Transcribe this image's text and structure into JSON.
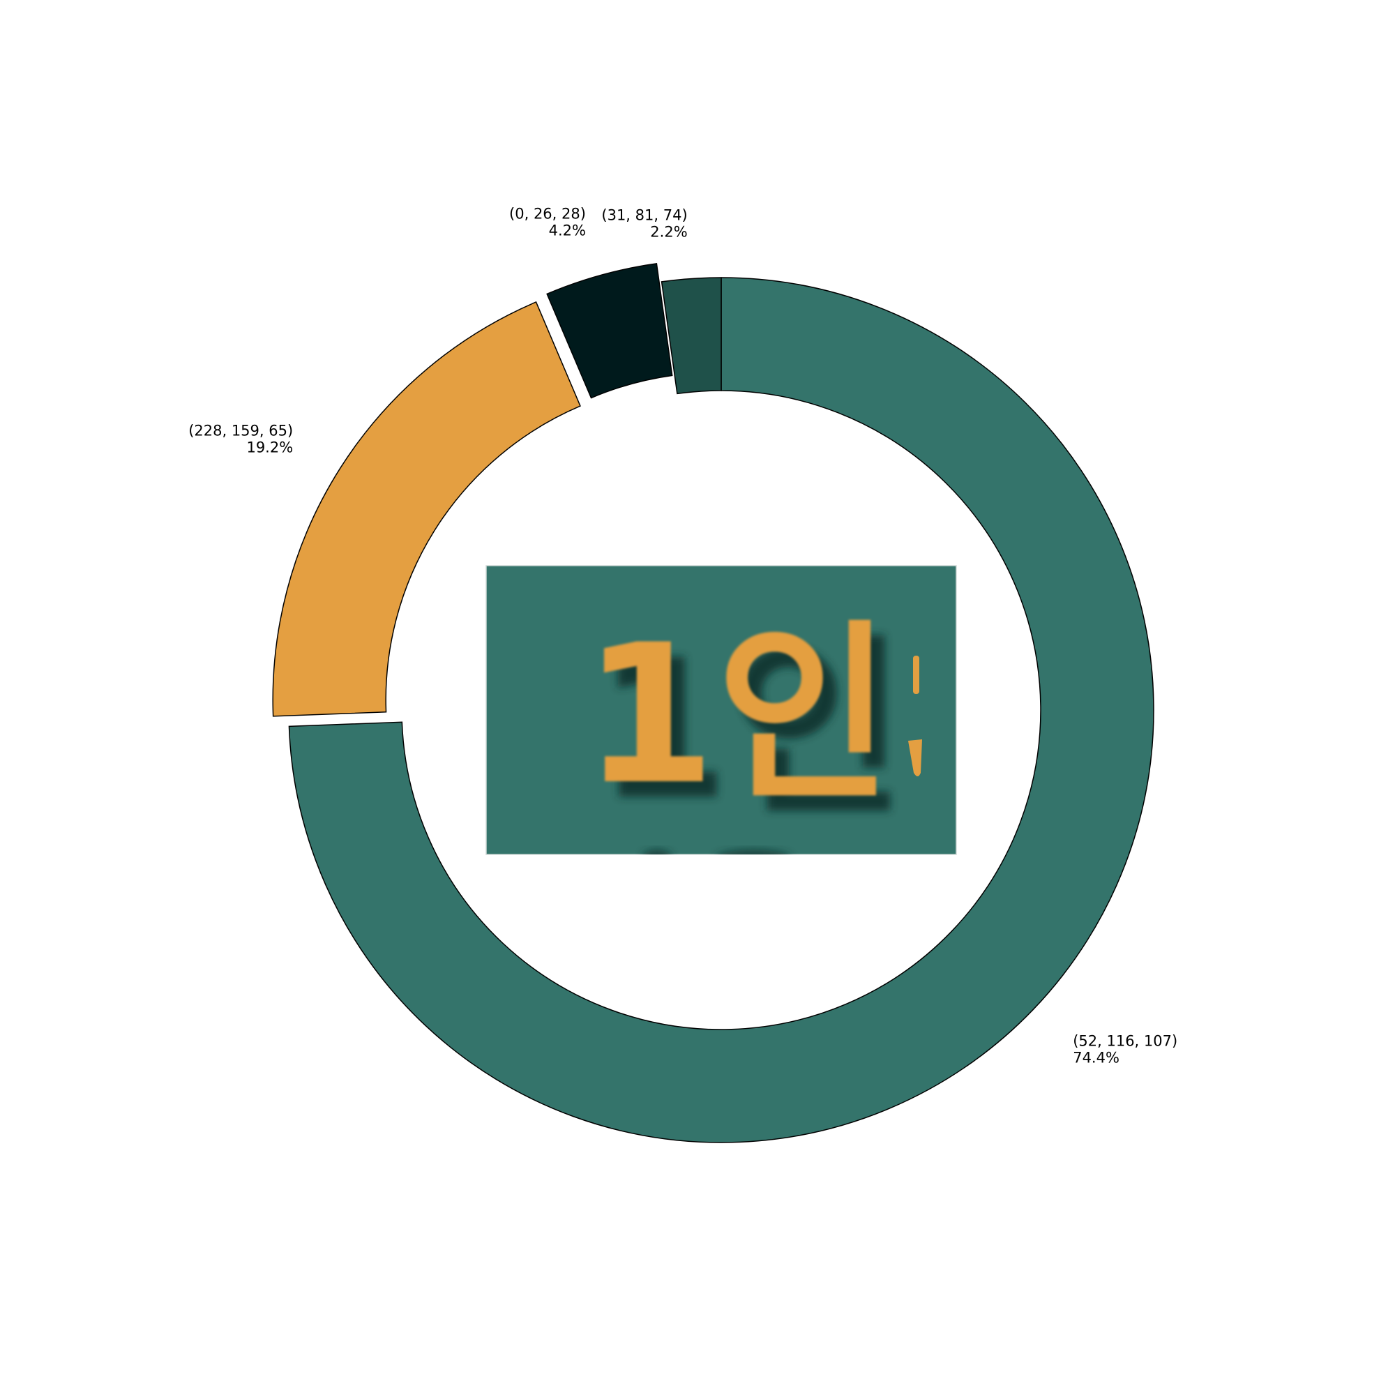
{
  "chart_data": {
    "type": "pie",
    "variant": "donut",
    "title": "",
    "start": "top, clockwise",
    "slices": [
      {
        "label": "(52, 116, 107)",
        "percent": 74.4,
        "percent_label": "74.4%",
        "color": "#34746b",
        "exploded": false
      },
      {
        "label": "(228, 159, 65)",
        "percent": 19.2,
        "percent_label": "19.2%",
        "color": "#e49f41",
        "exploded": true
      },
      {
        "label": "(0, 26, 28)",
        "percent": 4.2,
        "percent_label": "4.2%",
        "color": "#001a1c",
        "exploded": true
      },
      {
        "label": "(31, 81, 74)",
        "percent": 2.2,
        "percent_label": "2.2%",
        "color": "#1f514a",
        "exploded": false
      }
    ],
    "legend": "none",
    "center_image": {
      "text": "1인",
      "background": "#34746b",
      "text_color": "#e49f41"
    }
  }
}
